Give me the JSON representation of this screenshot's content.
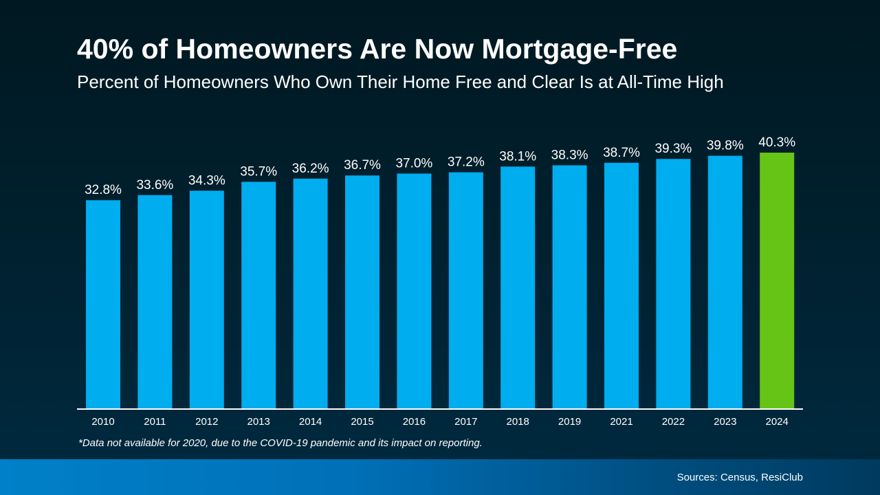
{
  "chart_data": {
    "type": "bar",
    "title": "40% of Homeowners Are Now Mortgage-Free",
    "subtitle": "Percent of Homeowners Who Own Their Home Free and Clear Is at All-Time High",
    "categories": [
      "2010",
      "2011",
      "2012",
      "2013",
      "2014",
      "2015",
      "2016",
      "2017",
      "2018",
      "2019",
      "2021",
      "2022",
      "2023",
      "2024"
    ],
    "values": [
      32.8,
      33.6,
      34.3,
      35.7,
      36.2,
      36.7,
      37.0,
      37.2,
      38.1,
      38.3,
      38.7,
      39.3,
      39.8,
      40.3
    ],
    "data_labels": [
      "32.8%",
      "33.6%",
      "34.3%",
      "35.7%",
      "36.2%",
      "36.7%",
      "37.0%",
      "37.2%",
      "38.1%",
      "38.3%",
      "38.7%",
      "39.3%",
      "39.8%",
      "40.3%"
    ],
    "xlabel": "",
    "ylabel": "",
    "ylim": [
      0,
      40.3
    ],
    "grid": false,
    "colors": {
      "bar": "#00adef",
      "highlight": "#66c416",
      "highlight_category": "2024"
    }
  },
  "footnote": "*Data not available for 2020, due to the COVID-19 pandemic and its impact on reporting.",
  "sources": "Sources: Census, ResiClub"
}
